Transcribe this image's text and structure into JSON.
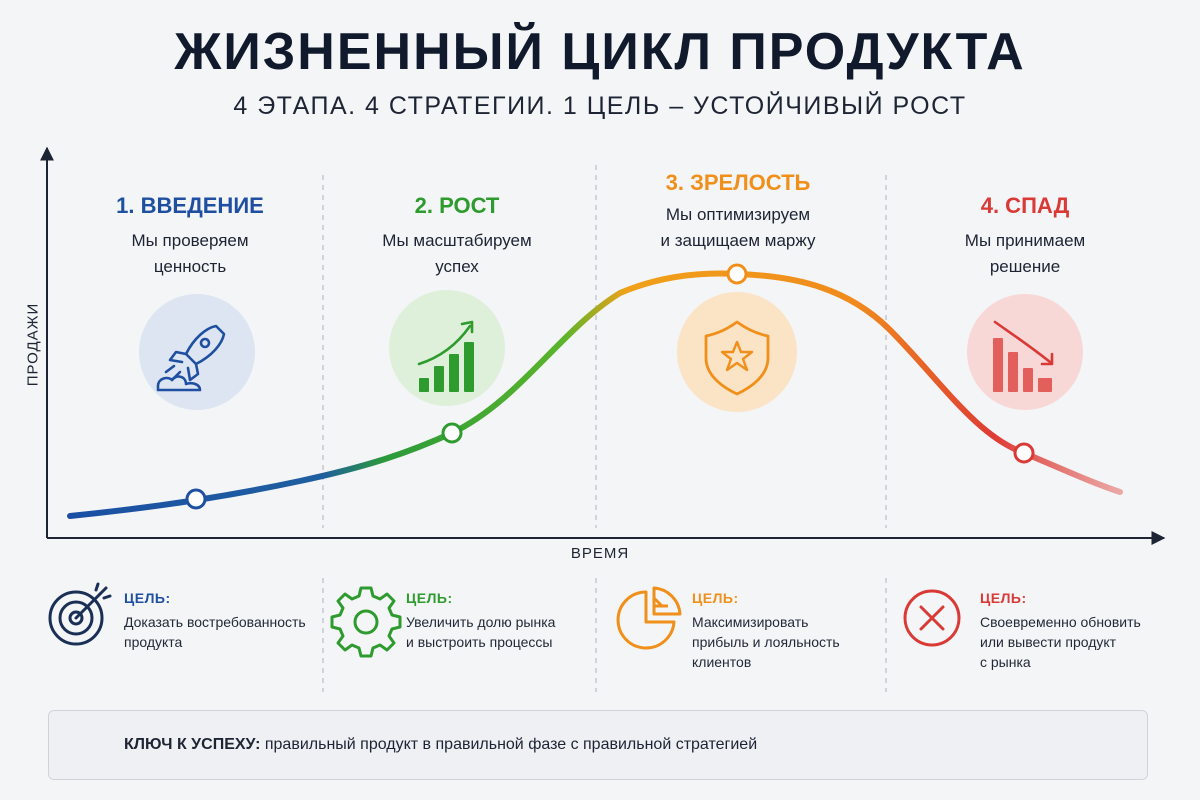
{
  "header": {
    "title": "ЖИЗНЕННЫЙ ЦИКЛ ПРОДУКТА",
    "subtitle": "4 ЭТАПА. 4 СТРАТЕГИИ. 1 ЦЕЛЬ – УСТОЙЧИВЫЙ РОСТ"
  },
  "axes": {
    "y_label": "ПРОДАЖИ",
    "x_label": "ВРЕМЯ"
  },
  "stages": [
    {
      "name": "1. ВВЕДЕНИЕ",
      "desc_line1": "Мы проверяем",
      "desc_line2": "ценность",
      "color": "#1f4fa0",
      "icon": "rocket-icon",
      "goal_label": "ЦЕЛЬ:",
      "goal_line1": "Доказать востребованность",
      "goal_line2": "продукта",
      "goal_line3": "",
      "goal_icon": "target-icon"
    },
    {
      "name": "2. РОСТ",
      "desc_line1": "Мы масштабируем",
      "desc_line2": "успех",
      "color": "#2e9b2e",
      "icon": "growth-chart-icon",
      "goal_label": "ЦЕЛЬ:",
      "goal_line1": "Увеличить долю рынка",
      "goal_line2": "и выстроить процессы",
      "goal_line3": "",
      "goal_icon": "gear-icon"
    },
    {
      "name": "3. ЗРЕЛОСТЬ",
      "desc_line1": "Мы оптимизируем",
      "desc_line2": "и защищаем маржу",
      "color": "#f0901a",
      "icon": "shield-star-icon",
      "goal_label": "ЦЕЛЬ:",
      "goal_line1": "Максимизировать",
      "goal_line2": "прибыль и лояльность",
      "goal_line3": "клиентов",
      "goal_icon": "pie-chart-icon"
    },
    {
      "name": "4. СПАД",
      "desc_line1": "Мы принимаем",
      "desc_line2": "решение",
      "color": "#d93a36",
      "icon": "decline-chart-icon",
      "goal_label": "ЦЕЛЬ:",
      "goal_line1": "Своевременно обновить",
      "goal_line2": "или вывести продукт",
      "goal_line3": "с рынка",
      "goal_icon": "close-circle-icon"
    }
  ],
  "key": {
    "label": "КЛЮЧ К УСПЕХУ:",
    "text": " правильный продукт в правильной фазе с правильной стратегией",
    "icon": "lightbulb-icon"
  }
}
